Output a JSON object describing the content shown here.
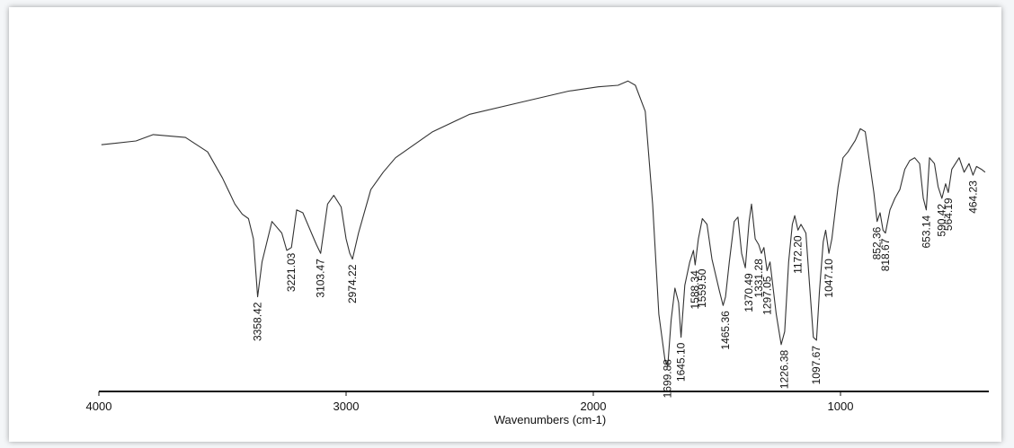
{
  "chart_data": {
    "type": "line",
    "title": "",
    "xlabel": "Wavenumbers (cm-1)",
    "ylabel": "",
    "xlim": [
      4000,
      400
    ],
    "x_reversed": true,
    "x_ticks": [
      {
        "value": 4000,
        "label": "4000"
      },
      {
        "value": 3000,
        "label": "3000"
      },
      {
        "value": 2000,
        "label": "2000"
      },
      {
        "value": 1000,
        "label": "1000"
      }
    ],
    "grid": false,
    "line_color": "#333333",
    "y_units": "relative transmittance (0-100, unlabeled axis)",
    "series": [
      {
        "points": [
          [
            3990,
            70.5
          ],
          [
            3850,
            71.8
          ],
          [
            3780,
            74.0
          ],
          [
            3650,
            73.0
          ],
          [
            3560,
            68.0
          ],
          [
            3500,
            59.0
          ],
          [
            3450,
            50.0
          ],
          [
            3420,
            46.5
          ],
          [
            3395,
            45.0
          ],
          [
            3375,
            38.0
          ],
          [
            3358,
            18.0
          ],
          [
            3340,
            30.0
          ],
          [
            3300,
            44.0
          ],
          [
            3260,
            40.0
          ],
          [
            3240,
            34.0
          ],
          [
            3221,
            35.0
          ],
          [
            3200,
            48.0
          ],
          [
            3175,
            47.0
          ],
          [
            3140,
            40.0
          ],
          [
            3120,
            36.0
          ],
          [
            3103,
            33.0
          ],
          [
            3075,
            50.0
          ],
          [
            3050,
            53.0
          ],
          [
            3020,
            49.0
          ],
          [
            3000,
            38.0
          ],
          [
            2985,
            33.0
          ],
          [
            2974,
            31.0
          ],
          [
            2950,
            40.0
          ],
          [
            2900,
            55.0
          ],
          [
            2850,
            61.0
          ],
          [
            2800,
            66.0
          ],
          [
            2650,
            75.0
          ],
          [
            2500,
            81.0
          ],
          [
            2300,
            85.0
          ],
          [
            2100,
            89.0
          ],
          [
            1980,
            90.5
          ],
          [
            1900,
            91.0
          ],
          [
            1860,
            92.5
          ],
          [
            1830,
            91.0
          ],
          [
            1790,
            82.0
          ],
          [
            1760,
            50.0
          ],
          [
            1735,
            12.0
          ],
          [
            1710,
            -4.0
          ],
          [
            1699,
            -6.0
          ],
          [
            1685,
            10.0
          ],
          [
            1670,
            21.0
          ],
          [
            1655,
            16.0
          ],
          [
            1645,
            4.0
          ],
          [
            1630,
            22.0
          ],
          [
            1610,
            30.0
          ],
          [
            1595,
            34.0
          ],
          [
            1588,
            29.0
          ],
          [
            1575,
            38.0
          ],
          [
            1559,
            45.0
          ],
          [
            1540,
            43.0
          ],
          [
            1520,
            31.0
          ],
          [
            1490,
            20.0
          ],
          [
            1475,
            15.0
          ],
          [
            1465,
            18.0
          ],
          [
            1450,
            30.0
          ],
          [
            1430,
            44.0
          ],
          [
            1415,
            45.5
          ],
          [
            1400,
            33.0
          ],
          [
            1385,
            28.0
          ],
          [
            1370,
            44.0
          ],
          [
            1360,
            50.0
          ],
          [
            1345,
            38.0
          ],
          [
            1331,
            36.0
          ],
          [
            1320,
            33.0
          ],
          [
            1310,
            35.0
          ],
          [
            1297,
            27.0
          ],
          [
            1285,
            30.0
          ],
          [
            1260,
            12.0
          ],
          [
            1240,
            1.5
          ],
          [
            1226,
            6.0
          ],
          [
            1210,
            30.0
          ],
          [
            1195,
            43.0
          ],
          [
            1185,
            46.0
          ],
          [
            1172,
            41.0
          ],
          [
            1160,
            43.0
          ],
          [
            1140,
            40.0
          ],
          [
            1125,
            22.0
          ],
          [
            1110,
            4.0
          ],
          [
            1097,
            3.0
          ],
          [
            1085,
            20.0
          ],
          [
            1070,
            37.0
          ],
          [
            1060,
            41.0
          ],
          [
            1047,
            33.0
          ],
          [
            1035,
            38.0
          ],
          [
            1010,
            56.0
          ],
          [
            990,
            66.0
          ],
          [
            970,
            68.0
          ],
          [
            940,
            72.0
          ],
          [
            920,
            76.0
          ],
          [
            900,
            75.0
          ],
          [
            880,
            63.0
          ],
          [
            865,
            54.0
          ],
          [
            852,
            44.0
          ],
          [
            840,
            47.0
          ],
          [
            828,
            41.0
          ],
          [
            818,
            40.0
          ],
          [
            800,
            48.0
          ],
          [
            780,
            52.0
          ],
          [
            760,
            55.0
          ],
          [
            740,
            62.0
          ],
          [
            720,
            65.0
          ],
          [
            700,
            66.0
          ],
          [
            680,
            64.0
          ],
          [
            665,
            52.0
          ],
          [
            653,
            48.0
          ],
          [
            640,
            66.0
          ],
          [
            620,
            64.0
          ],
          [
            605,
            56.0
          ],
          [
            590,
            52.0
          ],
          [
            575,
            57.0
          ],
          [
            564,
            54.0
          ],
          [
            550,
            62.0
          ],
          [
            520,
            66.0
          ],
          [
            500,
            61.0
          ],
          [
            480,
            64.0
          ],
          [
            464,
            60.0
          ],
          [
            450,
            63.0
          ],
          [
            430,
            62.0
          ],
          [
            415,
            61.0
          ]
        ]
      }
    ],
    "peak_labels": [
      {
        "x": 3358.42,
        "label": "3358.42",
        "y": 18.0
      },
      {
        "x": 3221.03,
        "label": "3221.03",
        "y": 35.0
      },
      {
        "x": 3103.47,
        "label": "3103.47",
        "y": 33.0
      },
      {
        "x": 2974.22,
        "label": "2974.22",
        "y": 31.0
      },
      {
        "x": 1699.88,
        "label": "1699.88",
        "y": -6.0
      },
      {
        "x": 1645.1,
        "label": "1645.10",
        "y": 4.0
      },
      {
        "x": 1588.34,
        "label": "1588.34",
        "y": 29.0
      },
      {
        "x": 1559.5,
        "label": "1559.50",
        "y": 29.5
      },
      {
        "x": 1465.36,
        "label": "1465.36",
        "y": 15.0
      },
      {
        "x": 1370.49,
        "label": "1370.49",
        "y": 28.0
      },
      {
        "x": 1331.28,
        "label": "1331.28",
        "y": 33.0
      },
      {
        "x": 1297.05,
        "label": "1297.05",
        "y": 27.0
      },
      {
        "x": 1226.38,
        "label": "1226.38",
        "y": 1.5
      },
      {
        "x": 1172.2,
        "label": "1172.20",
        "y": 41.0
      },
      {
        "x": 1097.67,
        "label": "1097.67",
        "y": 3.0
      },
      {
        "x": 1047.1,
        "label": "1047.10",
        "y": 33.0
      },
      {
        "x": 852.36,
        "label": "852.36",
        "y": 44.0
      },
      {
        "x": 818.67,
        "label": "818.67",
        "y": 40.0
      },
      {
        "x": 653.14,
        "label": "653.14",
        "y": 48.0
      },
      {
        "x": 590.42,
        "label": "590.42",
        "y": 52.0
      },
      {
        "x": 564.19,
        "label": "564.19",
        "y": 54.0
      },
      {
        "x": 464.23,
        "label": "464.23",
        "y": 60.0
      }
    ]
  }
}
